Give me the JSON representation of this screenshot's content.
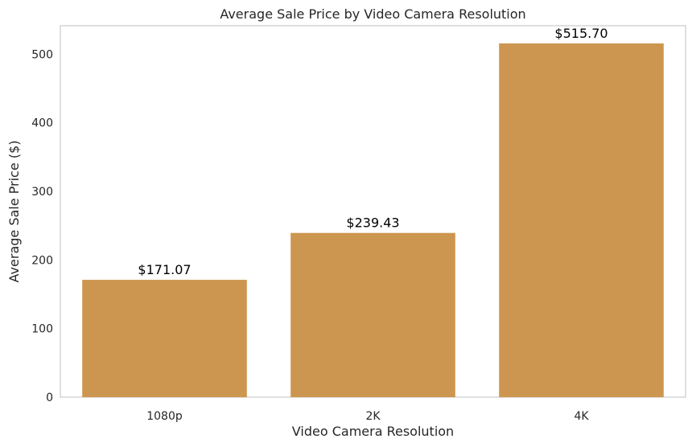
{
  "chart_data": {
    "type": "bar",
    "title": "Average Sale Price by Video Camera Resolution",
    "xlabel": "Video Camera Resolution",
    "ylabel": "Average Sale Price ($)",
    "categories": [
      "1080p",
      "2K",
      "4K"
    ],
    "values": [
      171.07,
      239.43,
      515.7
    ],
    "value_labels": [
      "$171.07",
      "$239.43",
      "$515.70"
    ],
    "ylim": [
      0,
      541.5
    ],
    "yticks": [
      0,
      100,
      200,
      300,
      400,
      500
    ],
    "grid": false,
    "colors": {
      "bar": "#cd9650",
      "axes_edge": "#cccccc"
    }
  }
}
